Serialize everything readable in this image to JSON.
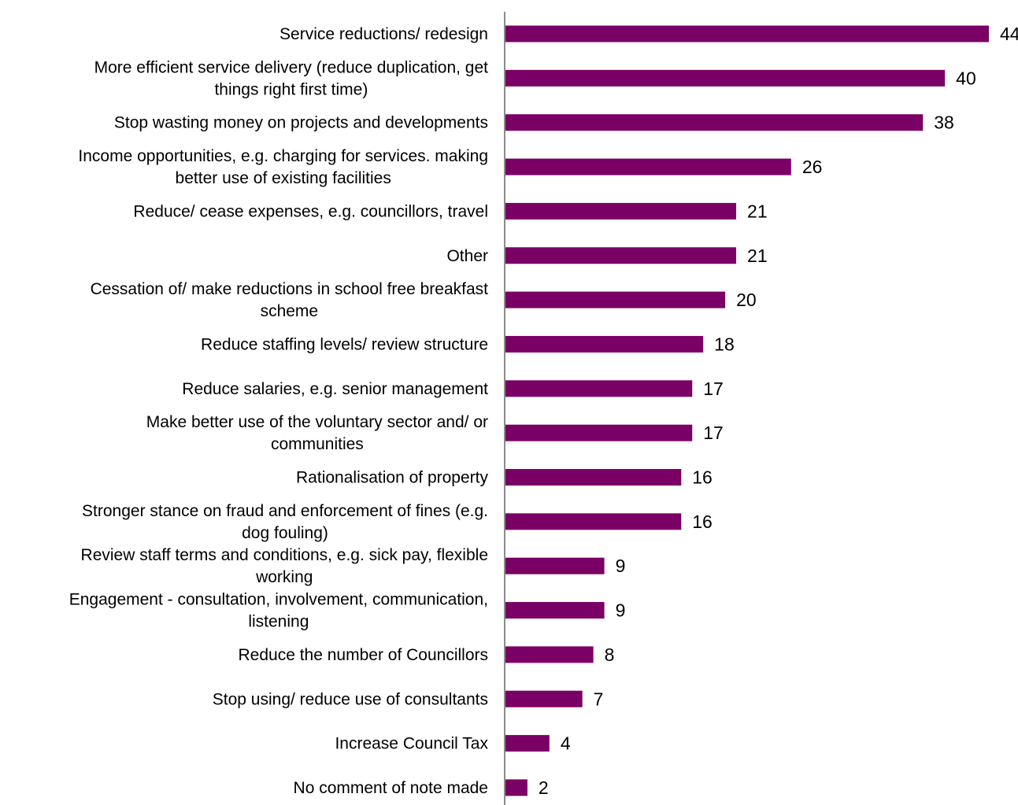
{
  "chart_data": {
    "type": "bar",
    "orientation": "horizontal",
    "title": "",
    "xlabel": "",
    "ylabel": "",
    "xlim": [
      0,
      44
    ],
    "grid": false,
    "legend": "none",
    "bar_color": "#7B0066",
    "axis_color": "#8C8C8C",
    "categories": [
      [
        "Service reductions/ redesign"
      ],
      [
        "More efficient service delivery (reduce duplication, get",
        "things right first time)"
      ],
      [
        "Stop wasting money on projects and developments"
      ],
      [
        "Income opportunities, e.g. charging for services. making",
        "better use of existing facilities"
      ],
      [
        "Reduce/ cease expenses, e.g. councillors, travel"
      ],
      [
        "Other"
      ],
      [
        "Cessation of/ make reductions in school free breakfast",
        "scheme"
      ],
      [
        "Reduce staffing levels/ review structure"
      ],
      [
        "Reduce salaries, e.g. senior management"
      ],
      [
        "Make better use of the voluntary sector and/ or",
        "communities"
      ],
      [
        "Rationalisation of property"
      ],
      [
        "Stronger stance on fraud and enforcement of fines (e.g.",
        "dog fouling)"
      ],
      [
        "Review staff terms and conditions, e.g. sick pay, flexible",
        "working"
      ],
      [
        "Engagement - consultation, involvement, communication,",
        "listening"
      ],
      [
        "Reduce the number of Councillors"
      ],
      [
        "Stop using/ reduce use of consultants"
      ],
      [
        "Increase Council Tax"
      ],
      [
        "No comment of note made"
      ]
    ],
    "values": [
      44,
      40,
      38,
      26,
      21,
      21,
      20,
      18,
      17,
      17,
      16,
      16,
      9,
      9,
      8,
      7,
      4,
      2
    ]
  }
}
